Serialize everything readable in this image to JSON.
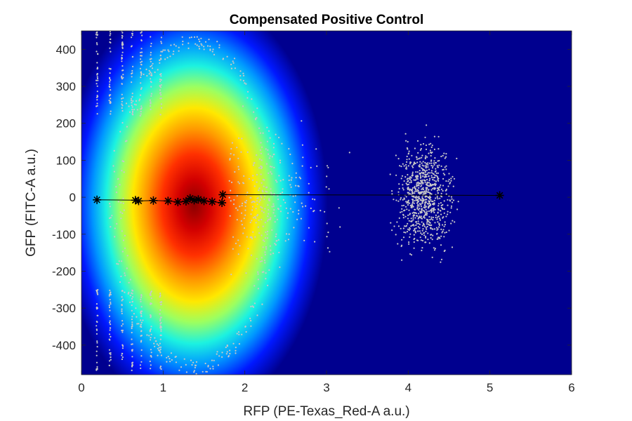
{
  "chart_data": {
    "type": "scatter",
    "title": "Compensated Positive Control",
    "xlabel": "RFP (PE-Texas_Red-A a.u.)",
    "ylabel": "GFP (FITC-A a.u.)",
    "xlim": [
      0,
      6
    ],
    "ylim": [
      -480,
      450
    ],
    "x_ticks": [
      0,
      1,
      2,
      3,
      4,
      5,
      6
    ],
    "y_ticks": [
      -400,
      -300,
      -200,
      -100,
      0,
      100,
      200,
      300,
      400
    ],
    "grid": false,
    "legend": "none",
    "colors": {
      "background": "#00008f",
      "density_colormap": "jet",
      "outlier_points": "#c8c8c8",
      "marker_line": "#000000"
    },
    "density_center": {
      "x": 1.38,
      "y": -20
    },
    "outlier_clusters": [
      {
        "x_center": 4.2,
        "y_center": 0,
        "x_range": [
          3.5,
          5.1
        ],
        "y_range": [
          -450,
          360
        ]
      },
      {
        "x_center": 2.3,
        "y_center": 0,
        "x_range": [
          1.8,
          3.3
        ],
        "y_range": [
          -440,
          420
        ]
      }
    ],
    "series": [
      {
        "values": [
          {
            "x": 0.19,
            "y": -7
          },
          {
            "x": 0.66,
            "y": -8
          },
          {
            "x": 0.7,
            "y": -10
          },
          {
            "x": 0.88,
            "y": -9
          },
          {
            "x": 1.06,
            "y": -10
          },
          {
            "x": 1.18,
            "y": -13
          },
          {
            "x": 1.28,
            "y": -11
          },
          {
            "x": 1.33,
            "y": -3
          },
          {
            "x": 1.38,
            "y": -8
          },
          {
            "x": 1.43,
            "y": -6
          },
          {
            "x": 1.5,
            "y": -10
          },
          {
            "x": 1.6,
            "y": -12
          },
          {
            "x": 1.72,
            "y": -15
          },
          {
            "x": 1.73,
            "y": 7
          },
          {
            "x": 5.12,
            "y": 5
          }
        ]
      }
    ]
  }
}
